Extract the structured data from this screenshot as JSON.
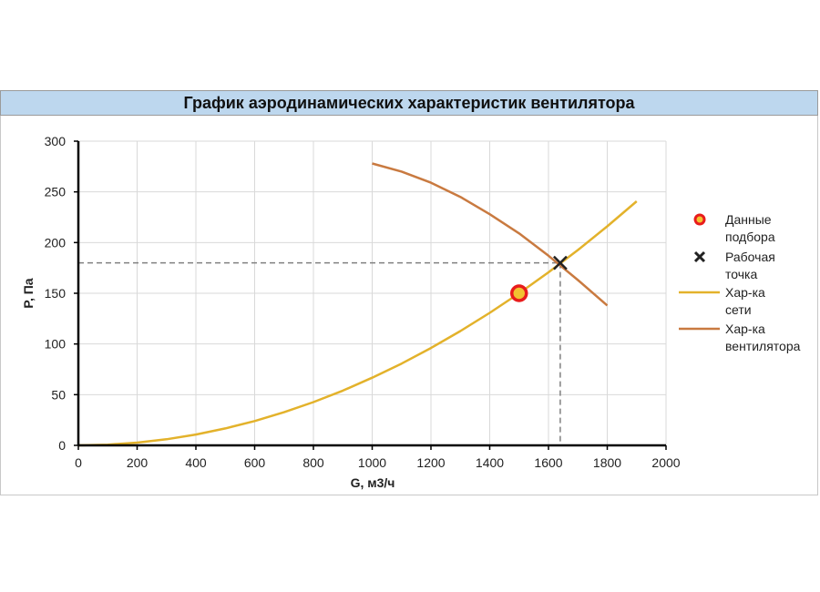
{
  "chart_data": {
    "type": "scatter",
    "title": "График аэродинамических характеристик вентилятора",
    "xlabel": "G, м3/ч",
    "ylabel": "P, Па",
    "xlim": [
      0,
      2000
    ],
    "ylim": [
      0,
      300
    ],
    "xticks": [
      0,
      200,
      400,
      600,
      800,
      1000,
      1200,
      1400,
      1600,
      1800,
      2000
    ],
    "yticks": [
      0,
      50,
      100,
      150,
      200,
      250,
      300
    ],
    "grid": true,
    "legend_position": "right",
    "series": [
      {
        "name": "Данные подбора",
        "kind": "marker",
        "marker": "circle",
        "color": "#e81c1c",
        "points": [
          [
            1500,
            150
          ]
        ]
      },
      {
        "name": "Рабочая точка",
        "kind": "marker",
        "marker": "x",
        "color": "#222222",
        "points": [
          [
            1640,
            180
          ]
        ]
      },
      {
        "name": "Хар-ка сети",
        "kind": "line",
        "color": "#e3b22b",
        "x": [
          0,
          100,
          200,
          300,
          400,
          500,
          600,
          700,
          800,
          900,
          1000,
          1100,
          1200,
          1300,
          1400,
          1500,
          1600,
          1700,
          1800,
          1900
        ],
        "y": [
          0,
          0.7,
          2.7,
          6,
          10.7,
          16.7,
          24,
          32.7,
          42.7,
          54,
          66.7,
          80.7,
          96,
          112.7,
          130.7,
          150,
          170.7,
          192.7,
          216,
          240.7
        ]
      },
      {
        "name": "Хар-ка вентилятора",
        "kind": "line",
        "color": "#c97a40",
        "x": [
          1000,
          1100,
          1200,
          1300,
          1400,
          1500,
          1600,
          1700,
          1800
        ],
        "y": [
          278,
          270,
          259,
          245,
          228,
          209,
          187,
          163,
          138
        ]
      }
    ],
    "guide_lines": {
      "x": 1640,
      "y": 180,
      "style": "dashed",
      "color": "#808080"
    }
  }
}
